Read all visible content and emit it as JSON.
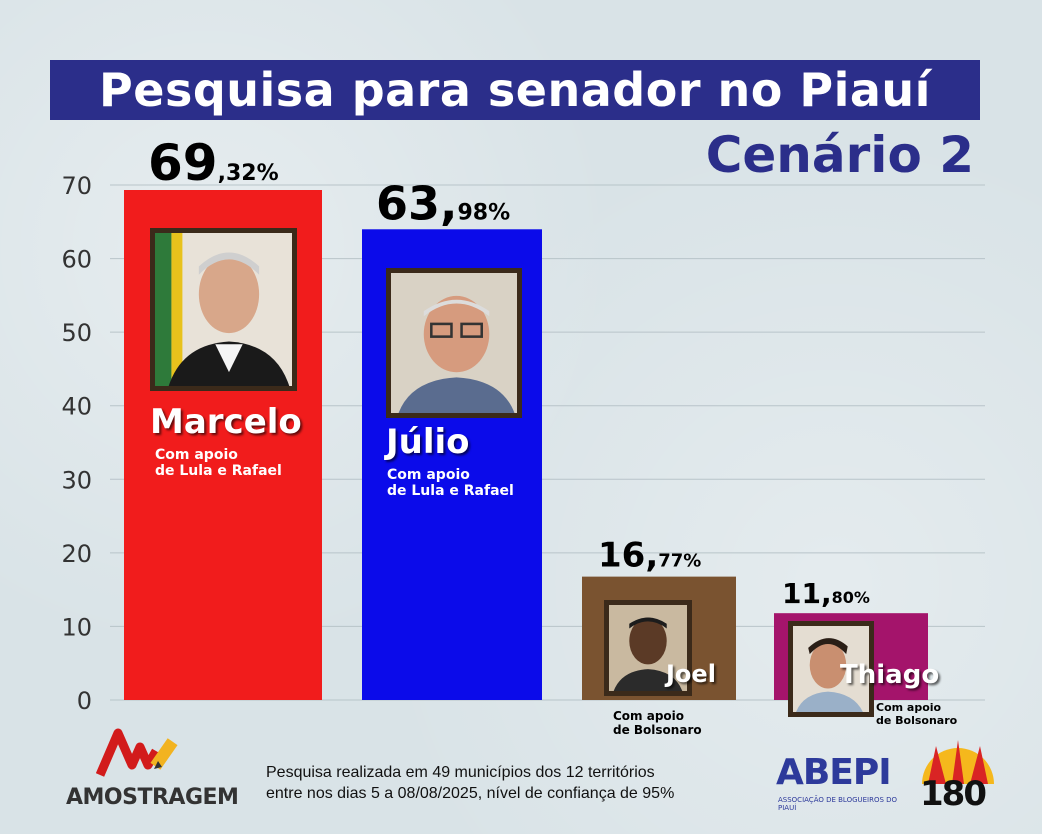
{
  "title": "Pesquisa para senador no Piauí",
  "subtitle": "Cenário 2",
  "chart_data": {
    "type": "bar",
    "ylim": [
      0,
      70
    ],
    "yticks": [
      0,
      10,
      20,
      30,
      40,
      50,
      60,
      70
    ],
    "grid": true,
    "categories": [
      "Marcelo",
      "Júlio",
      "Joel",
      "Thiago"
    ],
    "values": [
      69.32,
      63.98,
      16.77,
      11.8
    ],
    "value_labels": [
      {
        "int": "69",
        "sep": "",
        "dec": ",32%"
      },
      {
        "int": "63",
        "sep": ",",
        "dec": "98%"
      },
      {
        "int": "16",
        "sep": ",",
        "dec": "77%"
      },
      {
        "int": "11",
        "sep": ",",
        "dec": "80%"
      }
    ],
    "bar_colors": [
      "#f11c1c",
      "#0b0bea",
      "#7a5330",
      "#a4146b"
    ]
  },
  "candidates": [
    {
      "name": "Marcelo",
      "support_line1": "Com apoio",
      "support_line2": "de Lula e Rafael"
    },
    {
      "name": "Júlio",
      "support_line1": "Com apoio",
      "support_line2": "de Lula e Rafael"
    },
    {
      "name": "Joel",
      "support_line1": "Com apoio",
      "support_line2": "de Bolsonaro"
    },
    {
      "name": "Thiago",
      "support_line1": "Com apoio",
      "support_line2": "de Bolsonaro"
    }
  ],
  "footer": {
    "line1": "Pesquisa realizada em 49 municípios dos 12 territórios",
    "line2": "entre nos dias 5 a 08/08/2025, nível de confiança de 95%"
  },
  "logos": {
    "amostragem": "AMOSTRAGEM",
    "abepi": "ABEPI",
    "abepi_sub": "ASSOCIAÇÃO DE BLOGUEIROS DO PIAUÍ",
    "n180": "180"
  }
}
